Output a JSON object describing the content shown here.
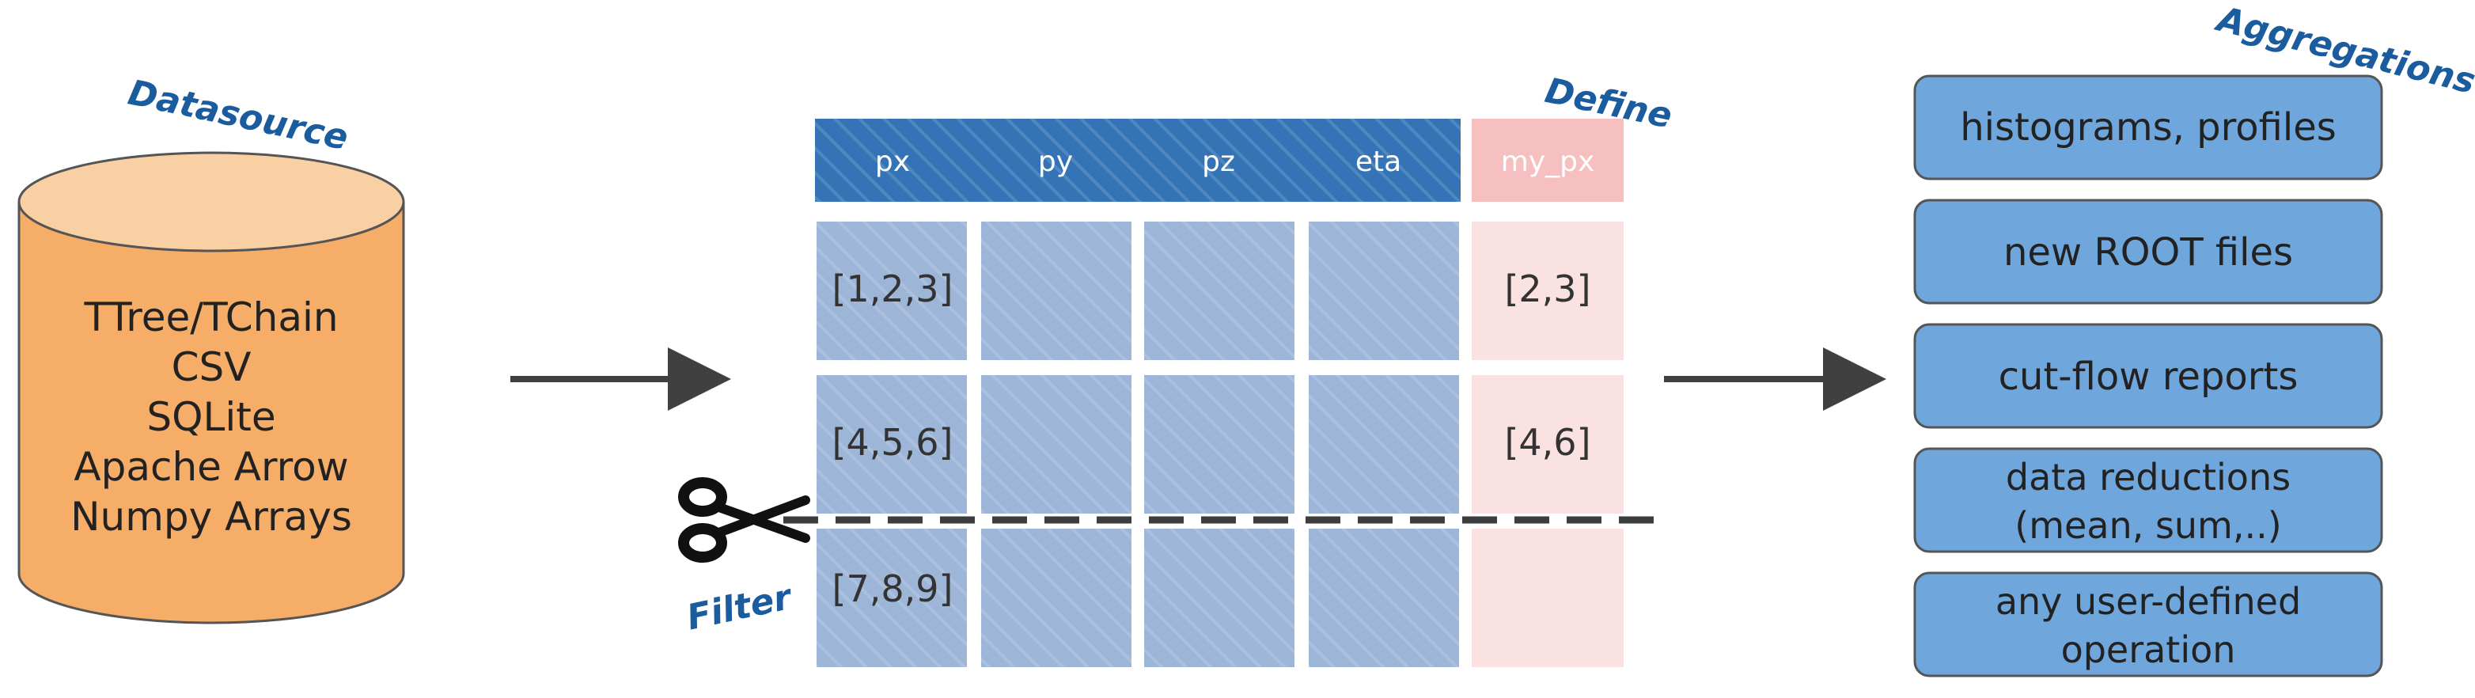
{
  "datasource": {
    "tag": "Datasource",
    "formats": [
      "TTree/TChain",
      "CSV",
      "SQLite",
      "Apache Arrow",
      "Numpy Arrays"
    ]
  },
  "table": {
    "columns": [
      "px",
      "py",
      "pz",
      "eta"
    ],
    "define_tag": "Define",
    "defined_column": "my_px",
    "rows": [
      {
        "px": "[1,2,3]",
        "my_px": "[2,3]"
      },
      {
        "px": "[4,5,6]",
        "my_px": "[4,6]"
      },
      {
        "px": "[7,8,9]",
        "my_px": ""
      }
    ],
    "filter_tag": "Filter"
  },
  "aggregations": {
    "tag": "Aggregations",
    "items": [
      [
        "histograms, profiles"
      ],
      [
        "new ROOT files"
      ],
      [
        "cut-flow reports"
      ],
      [
        "data reductions",
        "(mean, sum,..)"
      ],
      [
        "any user-defined",
        "operation"
      ]
    ]
  },
  "colors": {
    "cylinder_body": "#f5ad68",
    "cylinder_top": "#f9cfa4",
    "header_blue": "#3473b5",
    "cell_blue": "#9db6d8",
    "header_pink": "#f6c0c0",
    "cell_pink": "#fbe2e2",
    "tag_blue": "#1a5c9e",
    "box_blue": "#6fa6dc",
    "arrow": "#404040"
  }
}
